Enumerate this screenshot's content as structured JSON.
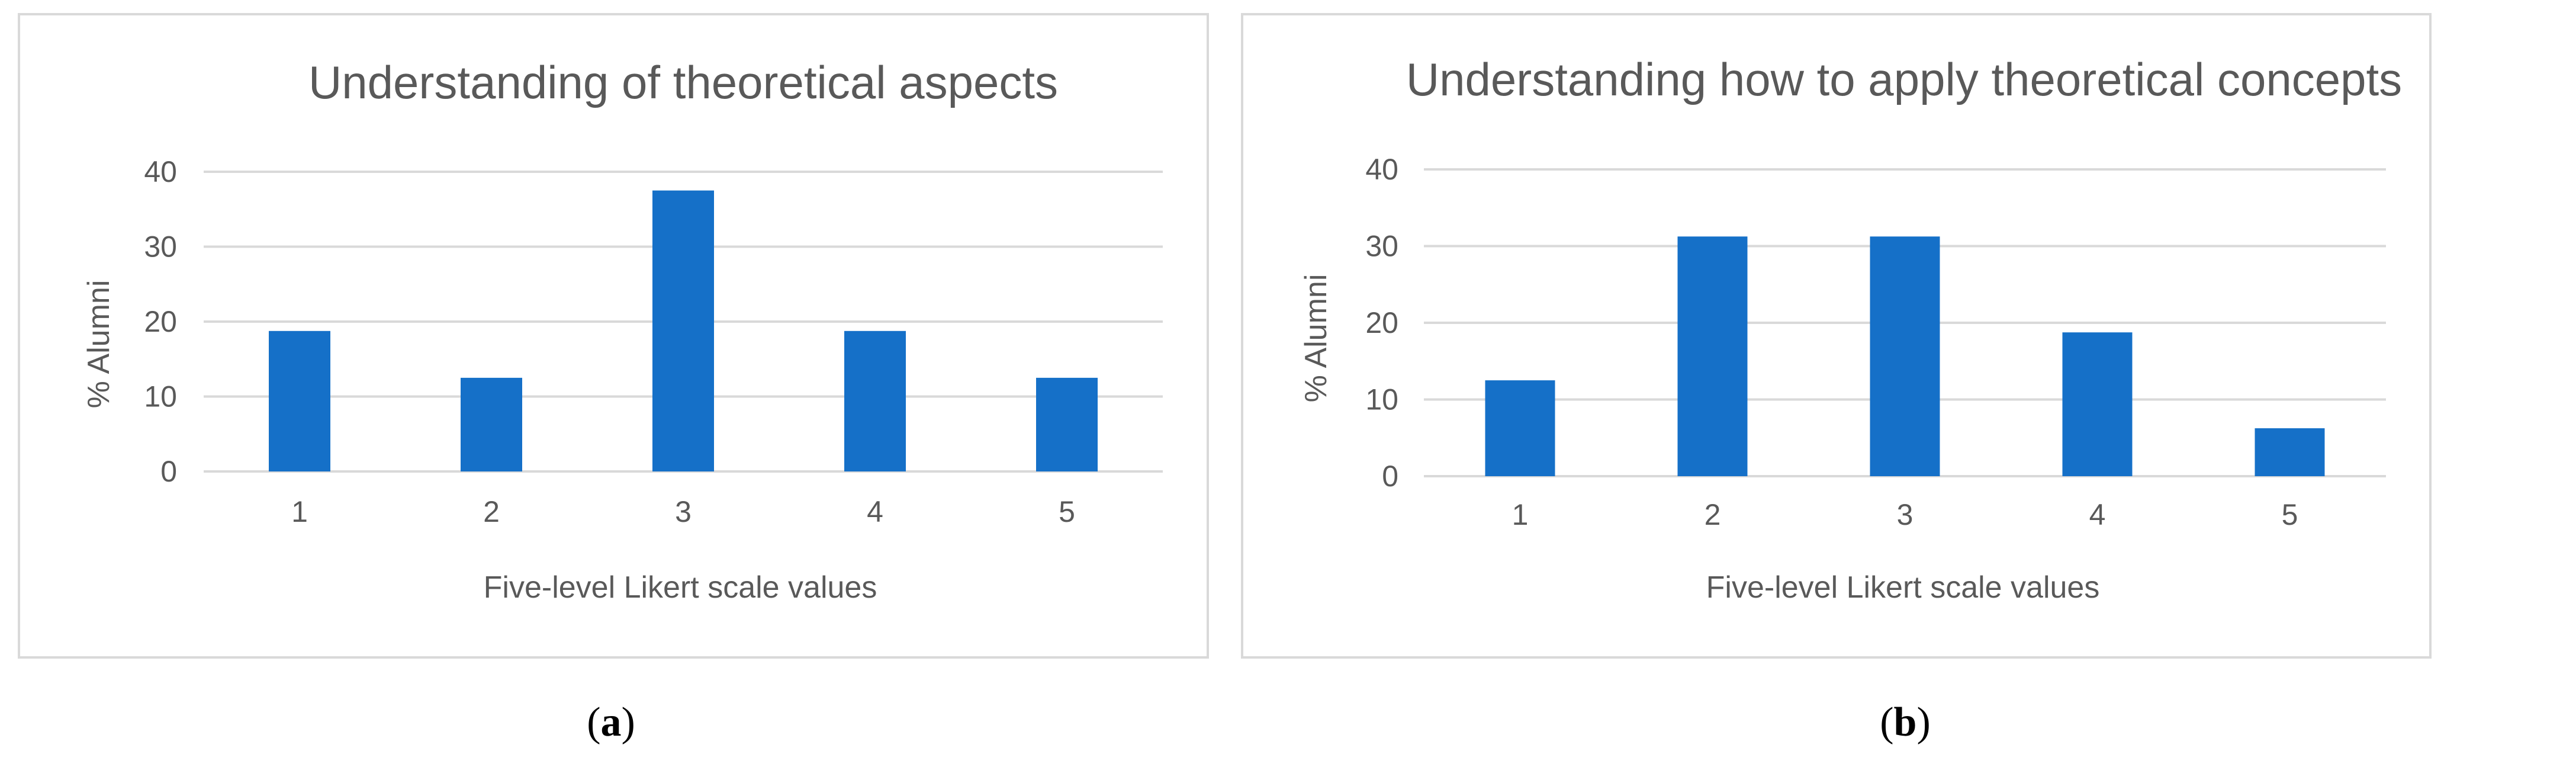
{
  "chart_data": [
    {
      "type": "bar",
      "title": "Understanding of theoretical aspects",
      "xlabel": "Five-level Likert scale values",
      "ylabel": "% Alumni",
      "categories": [
        "1",
        "2",
        "3",
        "4",
        "5"
      ],
      "values": [
        18.75,
        12.5,
        37.5,
        18.75,
        12.5
      ],
      "ylim": [
        0,
        40
      ],
      "yticks": [
        "0",
        "10",
        "20",
        "30",
        "40"
      ],
      "grid": true,
      "color": "#1570c8"
    },
    {
      "type": "bar",
      "title": "Understanding how to apply theoretical concepts",
      "xlabel": "Five-level Likert scale values",
      "ylabel": "% Alumni",
      "categories": [
        "1",
        "2",
        "3",
        "4",
        "5"
      ],
      "values": [
        12.5,
        31.25,
        31.25,
        18.75,
        6.25
      ],
      "ylim": [
        0,
        40
      ],
      "yticks": [
        "0",
        "10",
        "20",
        "30",
        "40"
      ],
      "grid": true,
      "color": "#1570c8"
    }
  ],
  "captions": {
    "a": {
      "open": "(",
      "letter": "a",
      "close": ")"
    },
    "b": {
      "open": "(",
      "letter": "b",
      "close": ")"
    }
  }
}
